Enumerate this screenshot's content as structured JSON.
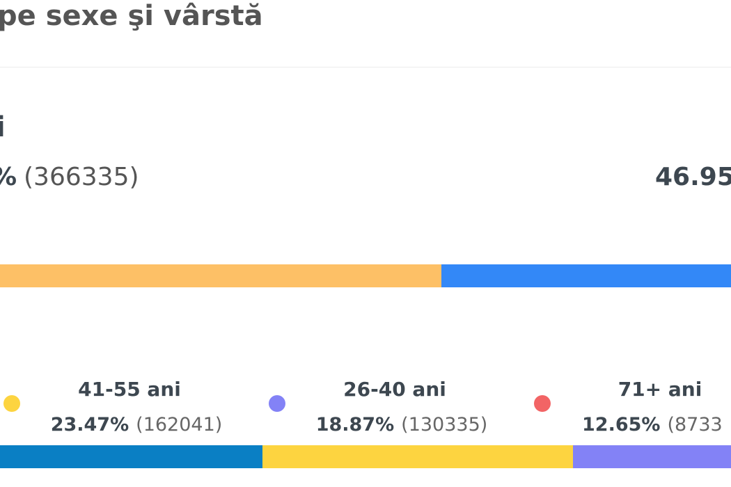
{
  "header": {
    "title": "pe sexe şi vârstă"
  },
  "gender": {
    "heading": "i",
    "left_percent": "%",
    "left_count": "(366335)",
    "right_percent": "46.95"
  },
  "age_groups": [
    {
      "label": "41-55 ani",
      "percent": "23.47%",
      "count": "(162041)"
    },
    {
      "label": "26-40 ani",
      "percent": "18.87%",
      "count": "(130335)"
    },
    {
      "label": "71+ ani",
      "percent": "12.65%",
      "count": "(8733"
    }
  ]
}
